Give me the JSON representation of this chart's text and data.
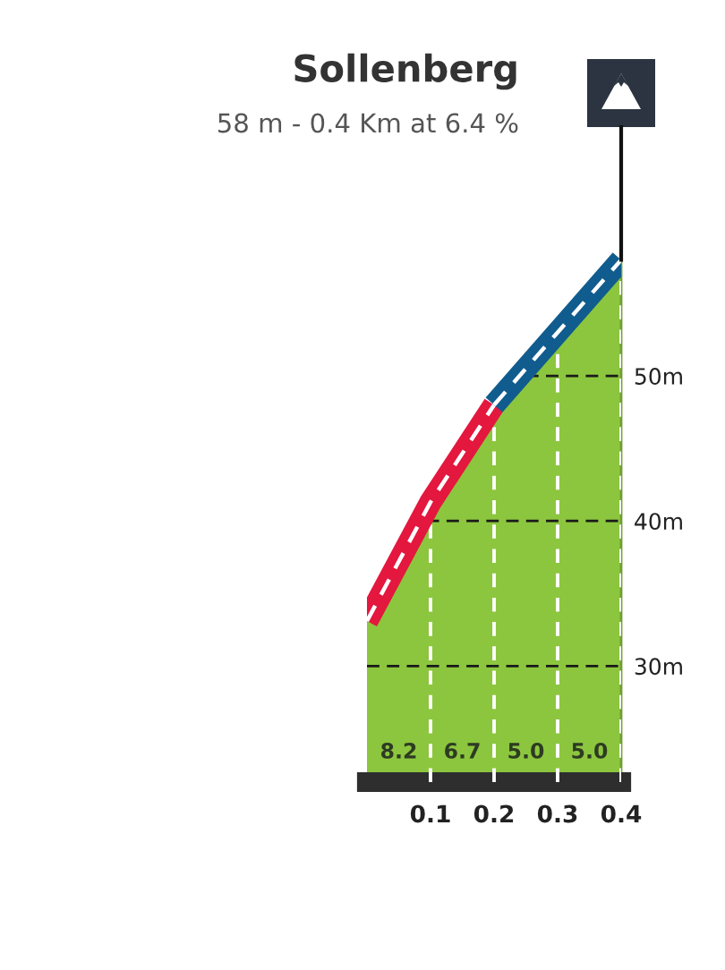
{
  "chart_data": {
    "type": "area",
    "title": "Sollenberg",
    "subtitle": "58 m - 0.4 Km at 6.4 %",
    "x": [
      0,
      0.1,
      0.2,
      0.3,
      0.4
    ],
    "series": [
      {
        "color": "#8cc63e",
        "values": [
          33.1,
          41.3,
          48.0,
          53.0,
          58.0
        ]
      },
      {
        "type": "line",
        "x": [
          0,
          0.1,
          0.2
        ],
        "color": "#e4173e",
        "values": [
          33.1,
          41.3,
          48.0
        ]
      },
      {
        "type": "line",
        "x": [
          0.2,
          0.3,
          0.4
        ],
        "color": "#105c8e",
        "values": [
          48.0,
          53.0,
          58.0
        ]
      }
    ],
    "xlim": [
      0,
      0.4
    ],
    "xticks": [
      0.1,
      0.2,
      0.3,
      0.4
    ],
    "ylim": [
      22,
      60
    ],
    "yticks": [
      {
        "value": 30,
        "label": "30m"
      },
      {
        "value": 40,
        "label": "40m"
      },
      {
        "value": 50,
        "label": "50m"
      }
    ],
    "grid": true,
    "annotations": [
      "8.2",
      "6.7",
      "5.0",
      "5.0"
    ]
  }
}
